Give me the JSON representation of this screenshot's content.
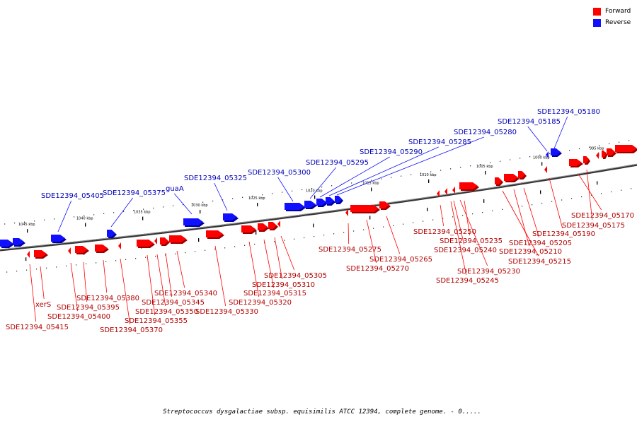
{
  "legend": {
    "forward_label": "Forward",
    "reverse_label": "Reverse",
    "forward_color": "#ff0000",
    "reverse_color": "#1010ff"
  },
  "caption": "Streptococcus dysgalactiae subsp. equisimilis ATCC 12394, complete genome. - 0.....",
  "scale_labels": [
    "1045 kbp",
    "1040 kbp",
    "1035 kbp",
    "1030 kbp",
    "1025 kbp",
    "1020 kbp",
    "1015 kbp",
    "1010 kbp",
    "1005 kbp",
    "1000 kbp",
    "995 kbp"
  ],
  "forward_genes": [
    "SDE12394_05170",
    "SDE12394_05175",
    "SDE12394_05190",
    "SDE12394_05205",
    "SDE12394_05210",
    "SDE12394_05215",
    "SDE12394_05230",
    "SDE12394_05235",
    "SDE12394_05240",
    "SDE12394_05245",
    "SDE12394_05250",
    "SDE12394_05265",
    "SDE12394_05270",
    "SDE12394_05275",
    "SDE12394_05305",
    "SDE12394_05310",
    "SDE12394_05315",
    "SDE12394_05320",
    "SDE12394_05330",
    "SDE12394_05340",
    "SDE12394_05345",
    "SDE12394_05350",
    "SDE12394_05355",
    "SDE12394_05370",
    "SDE12394_05380",
    "SDE12394_05395",
    "SDE12394_05400",
    "xerS",
    "SDE12394_05415"
  ],
  "reverse_genes": [
    "SDE12394_05180",
    "SDE12394_05185",
    "SDE12394_05280",
    "SDE12394_05285",
    "SDE12394_05290",
    "SDE12394_05295",
    "SDE12394_05300",
    "SDE12394_05325",
    "guaA",
    "SDE12394_05375",
    "SDE12394_05405"
  ]
}
